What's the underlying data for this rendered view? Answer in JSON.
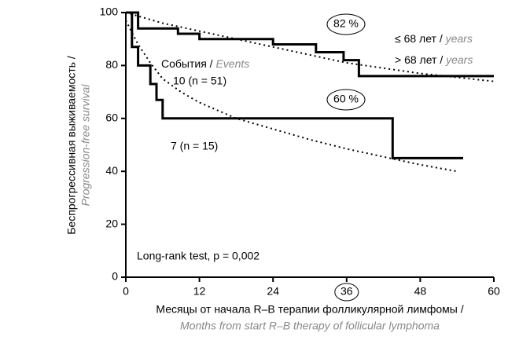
{
  "chart_data": {
    "type": "step",
    "xlabel": [
      "Месяцы от начала R–B терапии фолликулярной лимфомы /",
      "Months from start R–B therapy of follicular lymphoma"
    ],
    "ylabel": [
      "Беспрогрессивная выживаемость /",
      "Progression-free survival"
    ],
    "xlim": [
      0,
      60
    ],
    "xticks": [
      0,
      12,
      24,
      36,
      48,
      60
    ],
    "circled_xtick": 36,
    "ylim": [
      0,
      100
    ],
    "yticks": [
      0,
      20,
      40,
      60,
      80,
      100
    ],
    "series": [
      {
        "name": "≤ 68 лет / years",
        "color": "#000000",
        "style": "solid",
        "x": [
          0,
          2,
          8.5,
          12,
          24,
          31,
          35.5,
          38,
          60
        ],
        "values": [
          100,
          94,
          92,
          90,
          88,
          85,
          82,
          76,
          76
        ],
        "label": "82 %"
      },
      {
        "name": "> 68 лет / years",
        "color": "#000000",
        "style": "solid",
        "x": [
          0,
          1,
          2,
          4,
          5,
          6,
          43.5,
          55
        ],
        "values": [
          100,
          87,
          80,
          73,
          67,
          60,
          45,
          45
        ],
        "label": "60 %"
      },
      {
        "color": "#000000",
        "style": "dotted",
        "x": [
          0,
          6,
          12,
          18,
          24,
          30,
          36,
          42,
          48,
          54,
          60
        ],
        "values": [
          100,
          96,
          93,
          90,
          87,
          84,
          81,
          79,
          77,
          75.5,
          74
        ]
      },
      {
        "color": "#000000",
        "style": "dotted",
        "x": [
          0,
          2,
          4,
          6,
          9,
          12,
          18,
          24,
          30,
          36,
          42,
          48,
          54
        ],
        "values": [
          97,
          88,
          81,
          75,
          70,
          66,
          60,
          56,
          52,
          48.5,
          45.5,
          42.5,
          40
        ]
      }
    ],
    "annotations": {
      "events": [
        "События / ",
        "Events"
      ],
      "n1": "10 (n = 51)",
      "n2": "7 (n = 15)",
      "test": "Long-rank test, p = 0,002"
    }
  }
}
